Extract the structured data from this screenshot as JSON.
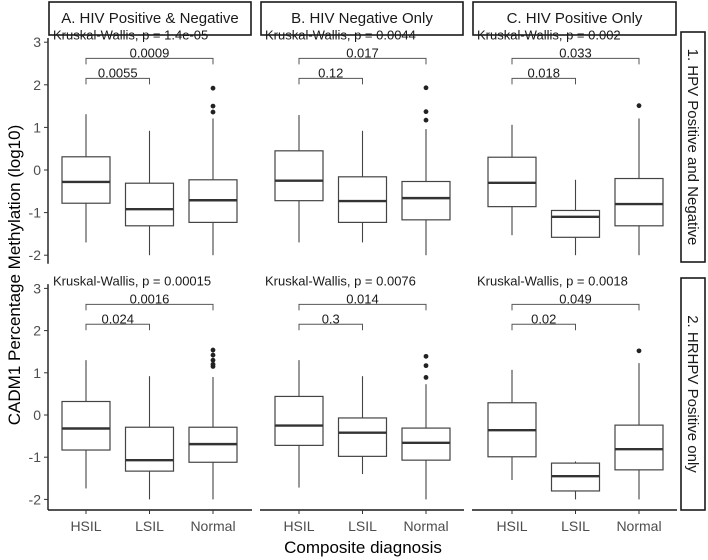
{
  "chart_data": {
    "type": "boxplot",
    "ylabel": "CADM1 Percentage Methylation (log10)",
    "xlabel": "Composite diagnosis",
    "categories": [
      "HSIL",
      "LSIL",
      "Normal"
    ],
    "yticks": [
      "3",
      "2",
      "1",
      "0",
      "-1",
      "-2"
    ],
    "ylim": [
      -2.2,
      3.2
    ],
    "columns": [
      "A. HIV Positive & Negative",
      "B. HIV Negative Only",
      "C. HIV Positive Only"
    ],
    "rows": [
      "1. HPV Positive and Negative",
      "2. HRHPV Positive only"
    ],
    "panels": [
      {
        "row": 0,
        "col": 0,
        "kruskal": "Kruskal-Wallis, p = 1.4e-05",
        "comparisons": [
          {
            "pair": [
              "HSIL",
              "LSIL"
            ],
            "p": "0.0055"
          },
          {
            "pair": [
              "HSIL",
              "Normal"
            ],
            "p": "0.0009"
          }
        ],
        "boxes": [
          {
            "category": "HSIL",
            "min": -1.7,
            "q1": -0.78,
            "median": -0.28,
            "q3": 0.31,
            "max": 1.31,
            "outliers": []
          },
          {
            "category": "LSIL",
            "min": -2.0,
            "q1": -1.31,
            "median": -0.92,
            "q3": -0.31,
            "max": 0.92,
            "outliers": []
          },
          {
            "category": "Normal",
            "min": -2.0,
            "q1": -1.23,
            "median": -0.71,
            "q3": -0.23,
            "max": 1.21,
            "outliers": [
              1.36,
              1.5,
              1.92
            ]
          }
        ]
      },
      {
        "row": 0,
        "col": 1,
        "kruskal": "Kruskal-Wallis, p = 0.0044",
        "comparisons": [
          {
            "pair": [
              "HSIL",
              "LSIL"
            ],
            "p": "0.12"
          },
          {
            "pair": [
              "HSIL",
              "Normal"
            ],
            "p": "0.017"
          }
        ],
        "boxes": [
          {
            "category": "HSIL",
            "min": -1.7,
            "q1": -0.72,
            "median": -0.25,
            "q3": 0.45,
            "max": 1.29,
            "outliers": []
          },
          {
            "category": "LSIL",
            "min": -1.7,
            "q1": -1.23,
            "median": -0.73,
            "q3": -0.16,
            "max": 0.92,
            "outliers": []
          },
          {
            "category": "Normal",
            "min": -2.0,
            "q1": -1.17,
            "median": -0.66,
            "q3": -0.27,
            "max": 0.96,
            "outliers": [
              1.17,
              1.37,
              1.93
            ]
          }
        ]
      },
      {
        "row": 0,
        "col": 2,
        "kruskal": "Kruskal-Wallis, p = 0.002",
        "comparisons": [
          {
            "pair": [
              "HSIL",
              "LSIL"
            ],
            "p": "0.018"
          },
          {
            "pair": [
              "HSIL",
              "Normal"
            ],
            "p": "0.033"
          }
        ],
        "boxes": [
          {
            "category": "HSIL",
            "min": -1.53,
            "q1": -0.86,
            "median": -0.3,
            "q3": 0.3,
            "max": 1.06,
            "outliers": []
          },
          {
            "category": "LSIL",
            "min": -2.0,
            "q1": -1.58,
            "median": -1.1,
            "q3": -0.95,
            "max": -0.23,
            "outliers": []
          },
          {
            "category": "Normal",
            "min": -2.0,
            "q1": -1.31,
            "median": -0.8,
            "q3": -0.2,
            "max": 1.21,
            "outliers": [
              1.51
            ]
          }
        ]
      },
      {
        "row": 1,
        "col": 0,
        "kruskal": "Kruskal-Wallis, p = 0.00015",
        "comparisons": [
          {
            "pair": [
              "HSIL",
              "LSIL"
            ],
            "p": "0.024"
          },
          {
            "pair": [
              "HSIL",
              "Normal"
            ],
            "p": "0.0016"
          }
        ],
        "boxes": [
          {
            "category": "HSIL",
            "min": -1.74,
            "q1": -0.83,
            "median": -0.32,
            "q3": 0.32,
            "max": 1.3,
            "outliers": []
          },
          {
            "category": "LSIL",
            "min": -2.0,
            "q1": -1.33,
            "median": -1.07,
            "q3": -0.29,
            "max": 0.92,
            "outliers": []
          },
          {
            "category": "Normal",
            "min": -2.0,
            "q1": -1.12,
            "median": -0.69,
            "q3": -0.29,
            "max": 0.9,
            "outliers": [
              1.15,
              1.2,
              1.3,
              1.42,
              1.54
            ]
          }
        ]
      },
      {
        "row": 1,
        "col": 1,
        "kruskal": "Kruskal-Wallis, p = 0.0076",
        "comparisons": [
          {
            "pair": [
              "HSIL",
              "LSIL"
            ],
            "p": "0.3"
          },
          {
            "pair": [
              "HSIL",
              "Normal"
            ],
            "p": "0.014"
          }
        ],
        "boxes": [
          {
            "category": "HSIL",
            "min": -1.72,
            "q1": -0.72,
            "median": -0.25,
            "q3": 0.44,
            "max": 1.3,
            "outliers": []
          },
          {
            "category": "LSIL",
            "min": -1.4,
            "q1": -0.98,
            "median": -0.42,
            "q3": -0.07,
            "max": 0.92,
            "outliers": []
          },
          {
            "category": "Normal",
            "min": -2.0,
            "q1": -1.07,
            "median": -0.66,
            "q3": -0.31,
            "max": 0.73,
            "outliers": [
              0.89,
              1.17,
              1.39
            ]
          }
        ]
      },
      {
        "row": 1,
        "col": 2,
        "kruskal": "Kruskal-Wallis, p = 0.0018",
        "comparisons": [
          {
            "pair": [
              "HSIL",
              "LSIL"
            ],
            "p": "0.02"
          },
          {
            "pair": [
              "HSIL",
              "Normal"
            ],
            "p": "0.049"
          }
        ],
        "boxes": [
          {
            "category": "HSIL",
            "min": -1.54,
            "q1": -0.99,
            "median": -0.36,
            "q3": 0.29,
            "max": 1.07,
            "outliers": []
          },
          {
            "category": "LSIL",
            "min": -2.0,
            "q1": -1.8,
            "median": -1.45,
            "q3": -1.14,
            "max": -1.1,
            "outliers": []
          },
          {
            "category": "Normal",
            "min": -2.0,
            "q1": -1.3,
            "median": -0.81,
            "q3": -0.24,
            "max": 1.23,
            "outliers": [
              1.52
            ]
          }
        ]
      }
    ],
    "bracket_levels": [
      2.15,
      2.62
    ]
  }
}
